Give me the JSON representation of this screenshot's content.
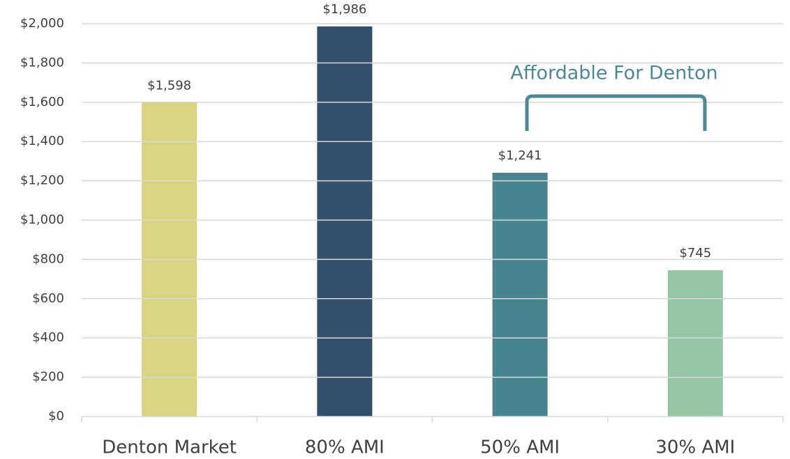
{
  "chart_data": {
    "type": "bar",
    "categories": [
      "Denton Market",
      "80% AMI",
      "50% AMI",
      "30% AMI"
    ],
    "values": [
      1598,
      1986,
      1241,
      745
    ],
    "value_labels": [
      "$1,598",
      "$1,986",
      "$1,241",
      "$745"
    ],
    "colors": [
      "#d8d47f",
      "#324f6c",
      "#468490",
      "#95c6a5"
    ],
    "ylim": [
      0,
      2000
    ],
    "yticks": [
      {
        "value": 0,
        "label": "$0"
      },
      {
        "value": 200,
        "label": "$200"
      },
      {
        "value": 400,
        "label": "$400"
      },
      {
        "value": 600,
        "label": "$600"
      },
      {
        "value": 800,
        "label": "$800"
      },
      {
        "value": 1000,
        "label": "$1,000"
      },
      {
        "value": 1200,
        "label": "$1,200"
      },
      {
        "value": 1400,
        "label": "$1,400"
      },
      {
        "value": 1600,
        "label": "$1,600"
      },
      {
        "value": 1800,
        "label": "$1,800"
      },
      {
        "value": 2000,
        "label": "$2,000"
      }
    ],
    "grid": true,
    "annotation": "Affordable For Denton"
  }
}
